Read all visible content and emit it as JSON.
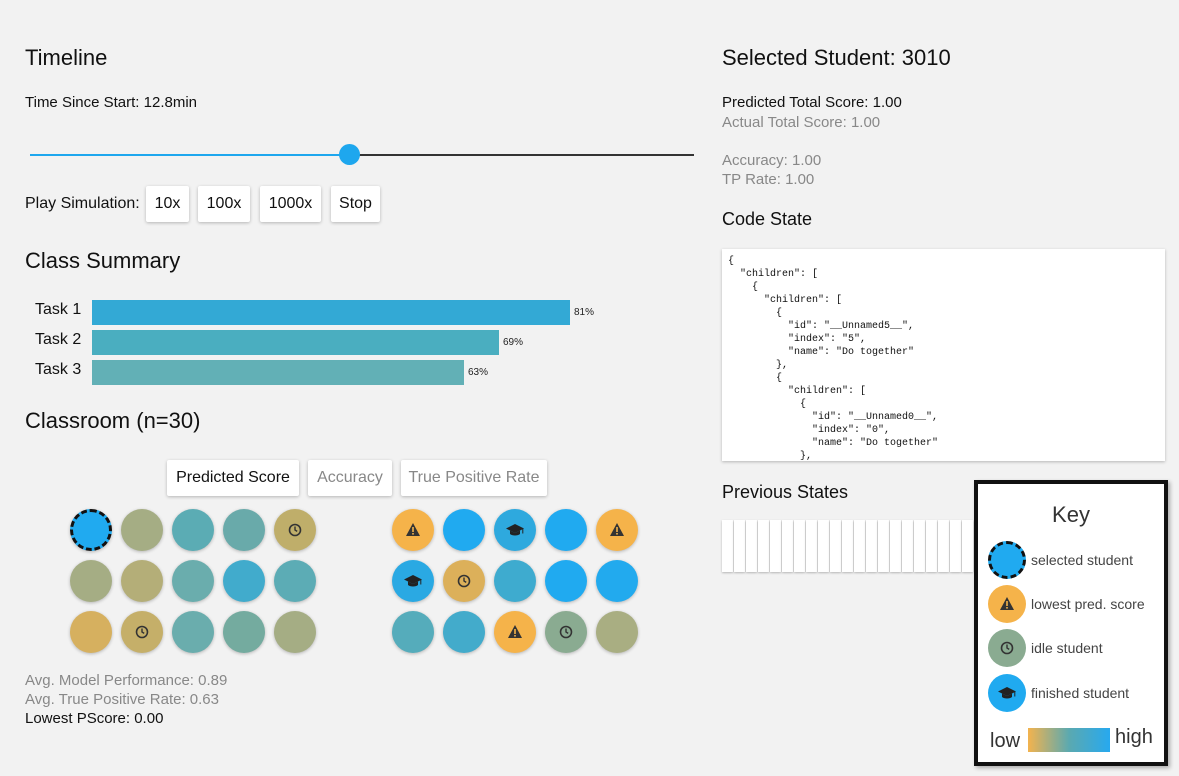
{
  "timeline": {
    "title": "Timeline",
    "time_label": "Time Since Start: 12.8min",
    "slider_value_fraction": 0.48,
    "play_label": "Play Simulation:",
    "buttons": [
      "10x",
      "100x",
      "1000x",
      "Stop"
    ]
  },
  "class_summary": {
    "title": "Class Summary",
    "tasks": [
      {
        "label": "Task 1",
        "value": 81,
        "text": "81%",
        "color": "#33a9d5"
      },
      {
        "label": "Task 2",
        "value": 69,
        "text": "69%",
        "color": "#4aaec0"
      },
      {
        "label": "Task 3",
        "value": 63,
        "text": "63%",
        "color": "#62b0b6"
      }
    ]
  },
  "classroom": {
    "title": "Classroom (n=30)",
    "tabs": [
      "Predicted Score",
      "Accuracy",
      "True Positive Rate"
    ],
    "active_tab": "Predicted Score",
    "stats": {
      "avg_model": "Avg. Model Performance: 0.89",
      "avg_tpr": "Avg. True Positive Rate: 0.63",
      "lowest": "Lowest PScore: 0.00"
    },
    "students": [
      {
        "color": "#20aaf0",
        "icon": "",
        "selected": true
      },
      {
        "color": "#a5ad84",
        "icon": ""
      },
      {
        "color": "#5bacb4",
        "icon": ""
      },
      {
        "color": "#69aaaa",
        "icon": ""
      },
      {
        "color": "#bfae6a",
        "icon": "clock"
      },
      {
        "color": "#f5b34a",
        "icon": "warning"
      },
      {
        "color": "#20aaf0",
        "icon": ""
      },
      {
        "color": "#2ea9de",
        "icon": "cap"
      },
      {
        "color": "#20aaf0",
        "icon": ""
      },
      {
        "color": "#f5b34a",
        "icon": "warning"
      },
      {
        "color": "#a5ad84",
        "icon": ""
      },
      {
        "color": "#b4ae78",
        "icon": ""
      },
      {
        "color": "#6aadad",
        "icon": ""
      },
      {
        "color": "#41abcc",
        "icon": ""
      },
      {
        "color": "#5cacb5",
        "icon": ""
      },
      {
        "color": "#2aa9e3",
        "icon": "cap"
      },
      {
        "color": "#dcb05a",
        "icon": "clock"
      },
      {
        "color": "#3eabcf",
        "icon": ""
      },
      {
        "color": "#20aaf0",
        "icon": ""
      },
      {
        "color": "#22aaee",
        "icon": ""
      },
      {
        "color": "#d6b05f",
        "icon": ""
      },
      {
        "color": "#c5af69",
        "icon": "clock"
      },
      {
        "color": "#6aadad",
        "icon": ""
      },
      {
        "color": "#74ab9f",
        "icon": ""
      },
      {
        "color": "#a5ad84",
        "icon": ""
      },
      {
        "color": "#55acbb",
        "icon": ""
      },
      {
        "color": "#43abcb",
        "icon": ""
      },
      {
        "color": "#f5b34a",
        "icon": "warning"
      },
      {
        "color": "#8aab91",
        "icon": "clock"
      },
      {
        "color": "#a9ae82",
        "icon": ""
      }
    ]
  },
  "selected": {
    "title": "Selected Student: 3010",
    "predicted": "Predicted Total Score: 1.00",
    "actual": "Actual Total Score: 1.00",
    "accuracy": "Accuracy: 1.00",
    "tp_rate": "TP Rate: 1.00",
    "code_title": "Code State",
    "code": "{\n  \"children\": [\n    {\n      \"children\": [\n        {\n          \"id\": \"__Unnamed5__\",\n          \"index\": \"5\",\n          \"name\": \"Do together\"\n        },\n        {\n          \"children\": [\n            {\n              \"id\": \"__Unnamed0__\",\n              \"index\": \"0\",\n              \"name\": \"Do together\"\n            },",
    "prev_title": "Previous States",
    "prev_count": 21
  },
  "key": {
    "title": "Key",
    "items": [
      {
        "label": "selected student",
        "color": "#20aaf0",
        "icon": "",
        "selected": true
      },
      {
        "label": "lowest pred. score",
        "color": "#f5b34a",
        "icon": "warning"
      },
      {
        "label": "idle student",
        "color": "#8aab91",
        "icon": "clock"
      },
      {
        "label": "finished student",
        "color": "#20aaf0",
        "icon": "cap"
      }
    ],
    "low": "low",
    "high": "high"
  }
}
